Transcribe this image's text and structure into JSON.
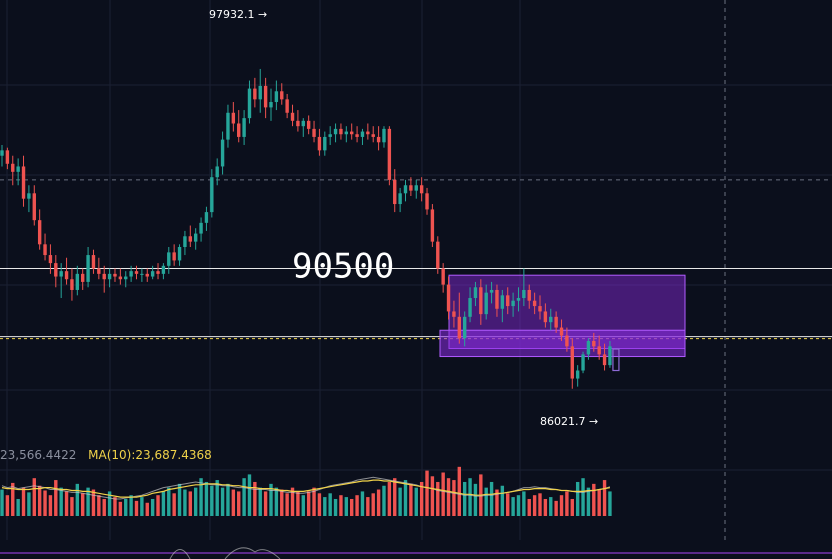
{
  "chart_data": {
    "type": "candlestick",
    "price_axis": {
      "ylim": [
        84000,
        100500
      ]
    },
    "annotations": {
      "high_label": "97932.1 →",
      "low_label": "86021.7 →",
      "level_label": "90500",
      "level_value": 90500,
      "current_price_line": 87960,
      "dashed_level": 93800
    },
    "zone": {
      "price_top": 90250,
      "price_bottom": 87520
    },
    "volume_legend": {
      "ma5_text": "23,566.4422",
      "ma10_text": "MA(10):23,687.4368"
    },
    "colors": {
      "up": "#26a69a",
      "down": "#ef5350",
      "zone": "#8b2be2",
      "ma10": "#f0d24a",
      "ma5": "#c8c8c8"
    },
    "candles": [
      [
        94700,
        95100,
        94300,
        94900
      ],
      [
        94900,
        95000,
        94200,
        94400
      ],
      [
        94400,
        94700,
        93600,
        94100
      ],
      [
        94100,
        94600,
        93600,
        94300
      ],
      [
        94300,
        94700,
        92800,
        93100
      ],
      [
        93100,
        93600,
        92600,
        93300
      ],
      [
        93300,
        93600,
        92100,
        92300
      ],
      [
        92300,
        92700,
        91200,
        91400
      ],
      [
        91400,
        91800,
        90800,
        91000
      ],
      [
        91000,
        91400,
        90300,
        90700
      ],
      [
        90700,
        91000,
        89800,
        90200
      ],
      [
        90200,
        90700,
        89400,
        90400
      ],
      [
        90400,
        90900,
        89900,
        90100
      ],
      [
        90100,
        90500,
        89300,
        89700
      ],
      [
        89700,
        90600,
        89500,
        90300
      ],
      [
        90300,
        90500,
        89700,
        90000
      ],
      [
        90000,
        91300,
        89800,
        91000
      ],
      [
        91000,
        91200,
        90300,
        90500
      ],
      [
        90500,
        90900,
        90100,
        90300
      ],
      [
        90300,
        90600,
        89600,
        90100
      ],
      [
        90100,
        90500,
        89800,
        90300
      ],
      [
        90300,
        90500,
        90000,
        90200
      ],
      [
        90200,
        90500,
        89900,
        90100
      ],
      [
        90100,
        90400,
        89800,
        90200
      ],
      [
        90200,
        90600,
        90000,
        90400
      ],
      [
        90400,
        90600,
        90100,
        90300
      ],
      [
        90300,
        90500,
        90000,
        90300
      ],
      [
        90300,
        90500,
        90000,
        90200
      ],
      [
        90200,
        90600,
        90100,
        90400
      ],
      [
        90400,
        90700,
        90100,
        90300
      ],
      [
        90300,
        90700,
        90100,
        90600
      ],
      [
        90600,
        91300,
        90300,
        91100
      ],
      [
        91100,
        91400,
        90600,
        90800
      ],
      [
        90800,
        91400,
        90600,
        91300
      ],
      [
        91300,
        91900,
        91000,
        91700
      ],
      [
        91700,
        92100,
        91300,
        91500
      ],
      [
        91500,
        92000,
        91200,
        91800
      ],
      [
        91800,
        92400,
        91500,
        92200
      ],
      [
        92200,
        92800,
        91900,
        92600
      ],
      [
        92600,
        94200,
        92400,
        93900
      ],
      [
        93900,
        94600,
        93600,
        94300
      ],
      [
        94300,
        95600,
        94000,
        95300
      ],
      [
        95300,
        96600,
        95000,
        96300
      ],
      [
        96300,
        96700,
        95600,
        95900
      ],
      [
        95900,
        96400,
        95200,
        95400
      ],
      [
        95400,
        96400,
        95100,
        96100
      ],
      [
        96100,
        97500,
        95900,
        97200
      ],
      [
        97200,
        97600,
        96500,
        96800
      ],
      [
        96800,
        97932,
        96300,
        97300
      ],
      [
        97300,
        97600,
        96100,
        96500
      ],
      [
        96500,
        97200,
        96000,
        96700
      ],
      [
        96700,
        97500,
        96400,
        97100
      ],
      [
        97100,
        97400,
        96600,
        96800
      ],
      [
        96800,
        97000,
        96100,
        96300
      ],
      [
        96300,
        96600,
        95800,
        96000
      ],
      [
        96000,
        96400,
        95600,
        95800
      ],
      [
        95800,
        96100,
        95400,
        96000
      ],
      [
        96000,
        96200,
        95500,
        95700
      ],
      [
        95700,
        96000,
        95200,
        95400
      ],
      [
        95400,
        95700,
        94700,
        94900
      ],
      [
        94900,
        95600,
        94700,
        95400
      ],
      [
        95400,
        95800,
        95100,
        95500
      ],
      [
        95500,
        95900,
        95200,
        95700
      ],
      [
        95700,
        95900,
        95300,
        95500
      ],
      [
        95500,
        95800,
        95200,
        95600
      ],
      [
        95600,
        95900,
        95300,
        95500
      ],
      [
        95500,
        95800,
        95200,
        95400
      ],
      [
        95400,
        95700,
        95100,
        95600
      ],
      [
        95600,
        95900,
        95300,
        95500
      ],
      [
        95500,
        95800,
        95200,
        95400
      ],
      [
        95400,
        95800,
        94900,
        95200
      ],
      [
        95200,
        95800,
        95000,
        95700
      ],
      [
        95700,
        95800,
        93600,
        93800
      ],
      [
        93800,
        94200,
        92600,
        92900
      ],
      [
        92900,
        93500,
        92600,
        93300
      ],
      [
        93300,
        93800,
        93000,
        93600
      ],
      [
        93600,
        93900,
        93200,
        93400
      ],
      [
        93400,
        93800,
        93100,
        93600
      ],
      [
        93600,
        93900,
        93000,
        93300
      ],
      [
        93300,
        93500,
        92500,
        92700
      ],
      [
        92700,
        92900,
        91300,
        91500
      ],
      [
        91500,
        91700,
        90300,
        90500
      ],
      [
        90500,
        90700,
        89600,
        89900
      ],
      [
        89900,
        90200,
        88600,
        88900
      ],
      [
        88900,
        89300,
        88300,
        88700
      ],
      [
        88700,
        89600,
        87700,
        87900
      ],
      [
        87900,
        88900,
        87600,
        88700
      ],
      [
        88700,
        89800,
        88500,
        89400
      ],
      [
        89400,
        90000,
        89100,
        89800
      ],
      [
        89800,
        90100,
        88400,
        88800
      ],
      [
        88800,
        89900,
        88600,
        89600
      ],
      [
        89600,
        90000,
        89200,
        89700
      ],
      [
        89700,
        89900,
        88700,
        89000
      ],
      [
        89000,
        89700,
        88500,
        89500
      ],
      [
        89500,
        89800,
        88800,
        89100
      ],
      [
        89100,
        89600,
        88700,
        89300
      ],
      [
        89300,
        89800,
        88900,
        89400
      ],
      [
        89400,
        90500,
        89100,
        89700
      ],
      [
        89700,
        89900,
        89000,
        89300
      ],
      [
        89300,
        89600,
        88800,
        89100
      ],
      [
        89100,
        89500,
        88600,
        88900
      ],
      [
        88900,
        89200,
        88300,
        88500
      ],
      [
        88500,
        89000,
        88200,
        88700
      ],
      [
        88700,
        88900,
        88100,
        88300
      ],
      [
        88300,
        88600,
        87800,
        88000
      ],
      [
        88000,
        88300,
        87400,
        87600
      ],
      [
        87600,
        87900,
        86021,
        86400
      ],
      [
        86400,
        86900,
        86100,
        86700
      ],
      [
        86700,
        87400,
        86600,
        87300
      ],
      [
        87300,
        87900,
        87100,
        87800
      ],
      [
        87800,
        88100,
        87400,
        87600
      ],
      [
        87600,
        88000,
        87100,
        87300
      ],
      [
        87300,
        87700,
        86700,
        86900
      ],
      [
        86900,
        87800,
        86800,
        87600
      ]
    ],
    "volumes": [
      28,
      22,
      35,
      18,
      30,
      25,
      40,
      32,
      27,
      22,
      38,
      30,
      26,
      20,
      34,
      24,
      30,
      28,
      22,
      18,
      26,
      20,
      15,
      18,
      22,
      16,
      20,
      14,
      18,
      22,
      26,
      30,
      24,
      34,
      28,
      26,
      30,
      40,
      36,
      32,
      38,
      30,
      34,
      28,
      26,
      40,
      44,
      36,
      30,
      26,
      34,
      30,
      28,
      24,
      30,
      26,
      22,
      26,
      30,
      24,
      20,
      24,
      18,
      22,
      20,
      18,
      22,
      26,
      20,
      24,
      28,
      32,
      36,
      40,
      30,
      38,
      34,
      30,
      36,
      48,
      42,
      36,
      46,
      40,
      38,
      52,
      36,
      40,
      34,
      44,
      30,
      36,
      28,
      32,
      24,
      20,
      22,
      26,
      18,
      22,
      24,
      18,
      20,
      16,
      22,
      26,
      18,
      36,
      40,
      30,
      34,
      28,
      38,
      26
    ],
    "ma10_line": [
      30,
      29,
      29,
      28,
      28,
      28,
      29,
      29,
      30,
      30,
      29,
      28,
      28,
      27,
      27,
      26,
      26,
      25,
      24,
      23,
      22,
      21,
      20,
      20,
      20,
      20,
      21,
      22,
      24,
      25,
      26,
      28,
      29,
      30,
      31,
      32,
      33,
      33,
      34,
      34,
      34,
      33,
      33,
      32,
      32,
      31,
      30,
      30,
      29,
      29,
      29,
      28,
      27,
      27,
      26,
      26,
      26,
      27,
      28,
      29,
      30,
      31,
      32,
      33,
      34,
      35,
      36,
      37,
      37,
      38,
      38,
      37,
      37,
      36,
      35,
      34,
      33,
      32,
      31,
      30,
      29,
      28,
      27,
      26,
      25,
      24,
      23,
      23,
      22,
      22,
      23,
      23,
      24,
      24,
      25,
      26,
      27,
      28,
      28,
      29,
      29,
      29,
      28,
      28,
      27,
      27,
      26,
      26,
      26,
      27,
      27,
      28,
      29,
      30
    ],
    "ma5_line": [
      32,
      30,
      31,
      29,
      30,
      31,
      32,
      31,
      30,
      28,
      28,
      27,
      26,
      25,
      25,
      24,
      23,
      22,
      21,
      20,
      19,
      18,
      18,
      19,
      20,
      21,
      22,
      24,
      26,
      28,
      30,
      31,
      32,
      33,
      34,
      35,
      36,
      35,
      34,
      33,
      33,
      32,
      32,
      31,
      30,
      30,
      29,
      28,
      28,
      28,
      27,
      27,
      26,
      25,
      25,
      24,
      24,
      25,
      26,
      28,
      30,
      32,
      33,
      34,
      35,
      36,
      38,
      39,
      40,
      41,
      40,
      39,
      38,
      37,
      36,
      35,
      34,
      33,
      31,
      30,
      29,
      27,
      26,
      25,
      24,
      23,
      22,
      22,
      21,
      21,
      22,
      22,
      23,
      24,
      25,
      26,
      28,
      30,
      30,
      31,
      30,
      30,
      29,
      28,
      27,
      27,
      26,
      25,
      25,
      26,
      27,
      28,
      29,
      31
    ]
  }
}
